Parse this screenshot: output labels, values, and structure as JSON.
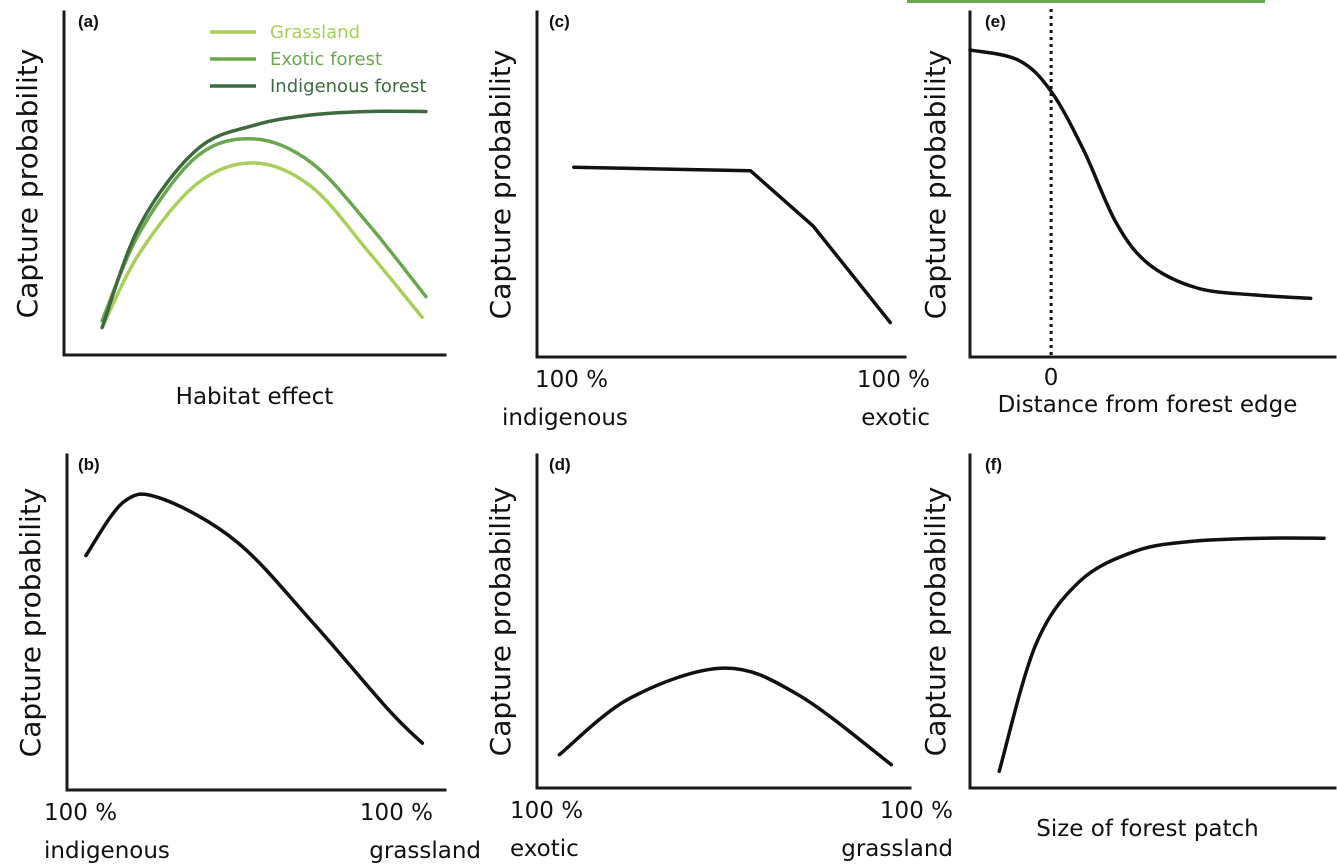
{
  "colors": {
    "grassland": "#a8cf5a",
    "exotic": "#6aa84f",
    "indigenous": "#3d6b3d",
    "black": "#111111"
  },
  "chart_data": [
    {
      "panel": "(a)",
      "type": "line",
      "ylabel": "Capture probability",
      "xlabel": "Habitat effect",
      "xlim": [
        0,
        1
      ],
      "ylim": [
        0,
        1
      ],
      "legend_position": "top-center",
      "series": [
        {
          "name": "Grassland",
          "color_key": "grassland",
          "x": [
            0.1,
            0.2,
            0.35,
            0.5,
            0.65,
            0.8,
            0.94
          ],
          "y": [
            0.08,
            0.3,
            0.5,
            0.56,
            0.49,
            0.3,
            0.11
          ]
        },
        {
          "name": "Exotic forest",
          "color_key": "exotic",
          "x": [
            0.1,
            0.2,
            0.35,
            0.5,
            0.65,
            0.8,
            0.95
          ],
          "y": [
            0.1,
            0.36,
            0.58,
            0.63,
            0.56,
            0.38,
            0.17
          ]
        },
        {
          "name": "Indigenous forest",
          "color_key": "indigenous",
          "x": [
            0.1,
            0.2,
            0.35,
            0.5,
            0.65,
            0.8,
            0.95
          ],
          "y": [
            0.08,
            0.38,
            0.6,
            0.67,
            0.7,
            0.71,
            0.71
          ]
        }
      ]
    },
    {
      "panel": "(b)",
      "type": "line",
      "ylabel": "Capture probability",
      "xtick_left": [
        "100 %",
        "indigenous"
      ],
      "xtick_right": [
        "100 %",
        "grassland"
      ],
      "xlim": [
        0,
        1
      ],
      "ylim": [
        0,
        1
      ],
      "series": [
        {
          "color_key": "black",
          "x": [
            0.05,
            0.15,
            0.25,
            0.45,
            0.65,
            0.85,
            0.94
          ],
          "y": [
            0.7,
            0.86,
            0.87,
            0.74,
            0.5,
            0.24,
            0.14
          ]
        }
      ]
    },
    {
      "panel": "(c)",
      "type": "line",
      "ylabel": "Capture probability",
      "xtick_left": [
        "100 %",
        "indigenous"
      ],
      "xtick_right": [
        "100 %",
        "exotic"
      ],
      "xlim": [
        0,
        1
      ],
      "ylim": [
        0,
        1
      ],
      "series": [
        {
          "color_key": "black",
          "x": [
            0.1,
            0.58,
            0.75,
            0.96
          ],
          "y": [
            0.55,
            0.54,
            0.38,
            0.1
          ]
        }
      ]
    },
    {
      "panel": "(d)",
      "type": "line",
      "ylabel": "Capture probability",
      "xtick_left": [
        "100 %",
        "exotic"
      ],
      "xtick_right": [
        "100 %",
        "grassland"
      ],
      "xlim": [
        0,
        1
      ],
      "ylim": [
        0,
        1
      ],
      "series": [
        {
          "color_key": "black",
          "x": [
            0.06,
            0.25,
            0.5,
            0.7,
            0.95
          ],
          "y": [
            0.1,
            0.27,
            0.36,
            0.28,
            0.07
          ]
        }
      ]
    },
    {
      "panel": "(e)",
      "type": "line",
      "ylabel": "Capture probability",
      "xlabel": "Distance from forest edge",
      "xticks": [
        "0"
      ],
      "xtick_values": [
        0
      ],
      "vline_x": 0,
      "xlim": [
        -1,
        3.5
      ],
      "ylim": [
        0,
        1
      ],
      "series": [
        {
          "color_key": "black",
          "x": [
            -1,
            -0.4,
            0,
            0.4,
            0.8,
            1.2,
            1.8,
            2.5,
            3.2
          ],
          "y": [
            0.89,
            0.86,
            0.77,
            0.6,
            0.39,
            0.27,
            0.2,
            0.18,
            0.17
          ]
        }
      ]
    },
    {
      "panel": "(f)",
      "type": "line",
      "ylabel": "Capture probability",
      "xlabel": "Size of forest patch",
      "xlim": [
        0,
        1
      ],
      "ylim": [
        0,
        1
      ],
      "series": [
        {
          "color_key": "black",
          "x": [
            0.08,
            0.18,
            0.3,
            0.45,
            0.6,
            0.8,
            0.97
          ],
          "y": [
            0.05,
            0.43,
            0.62,
            0.71,
            0.74,
            0.75,
            0.75
          ]
        }
      ]
    }
  ]
}
